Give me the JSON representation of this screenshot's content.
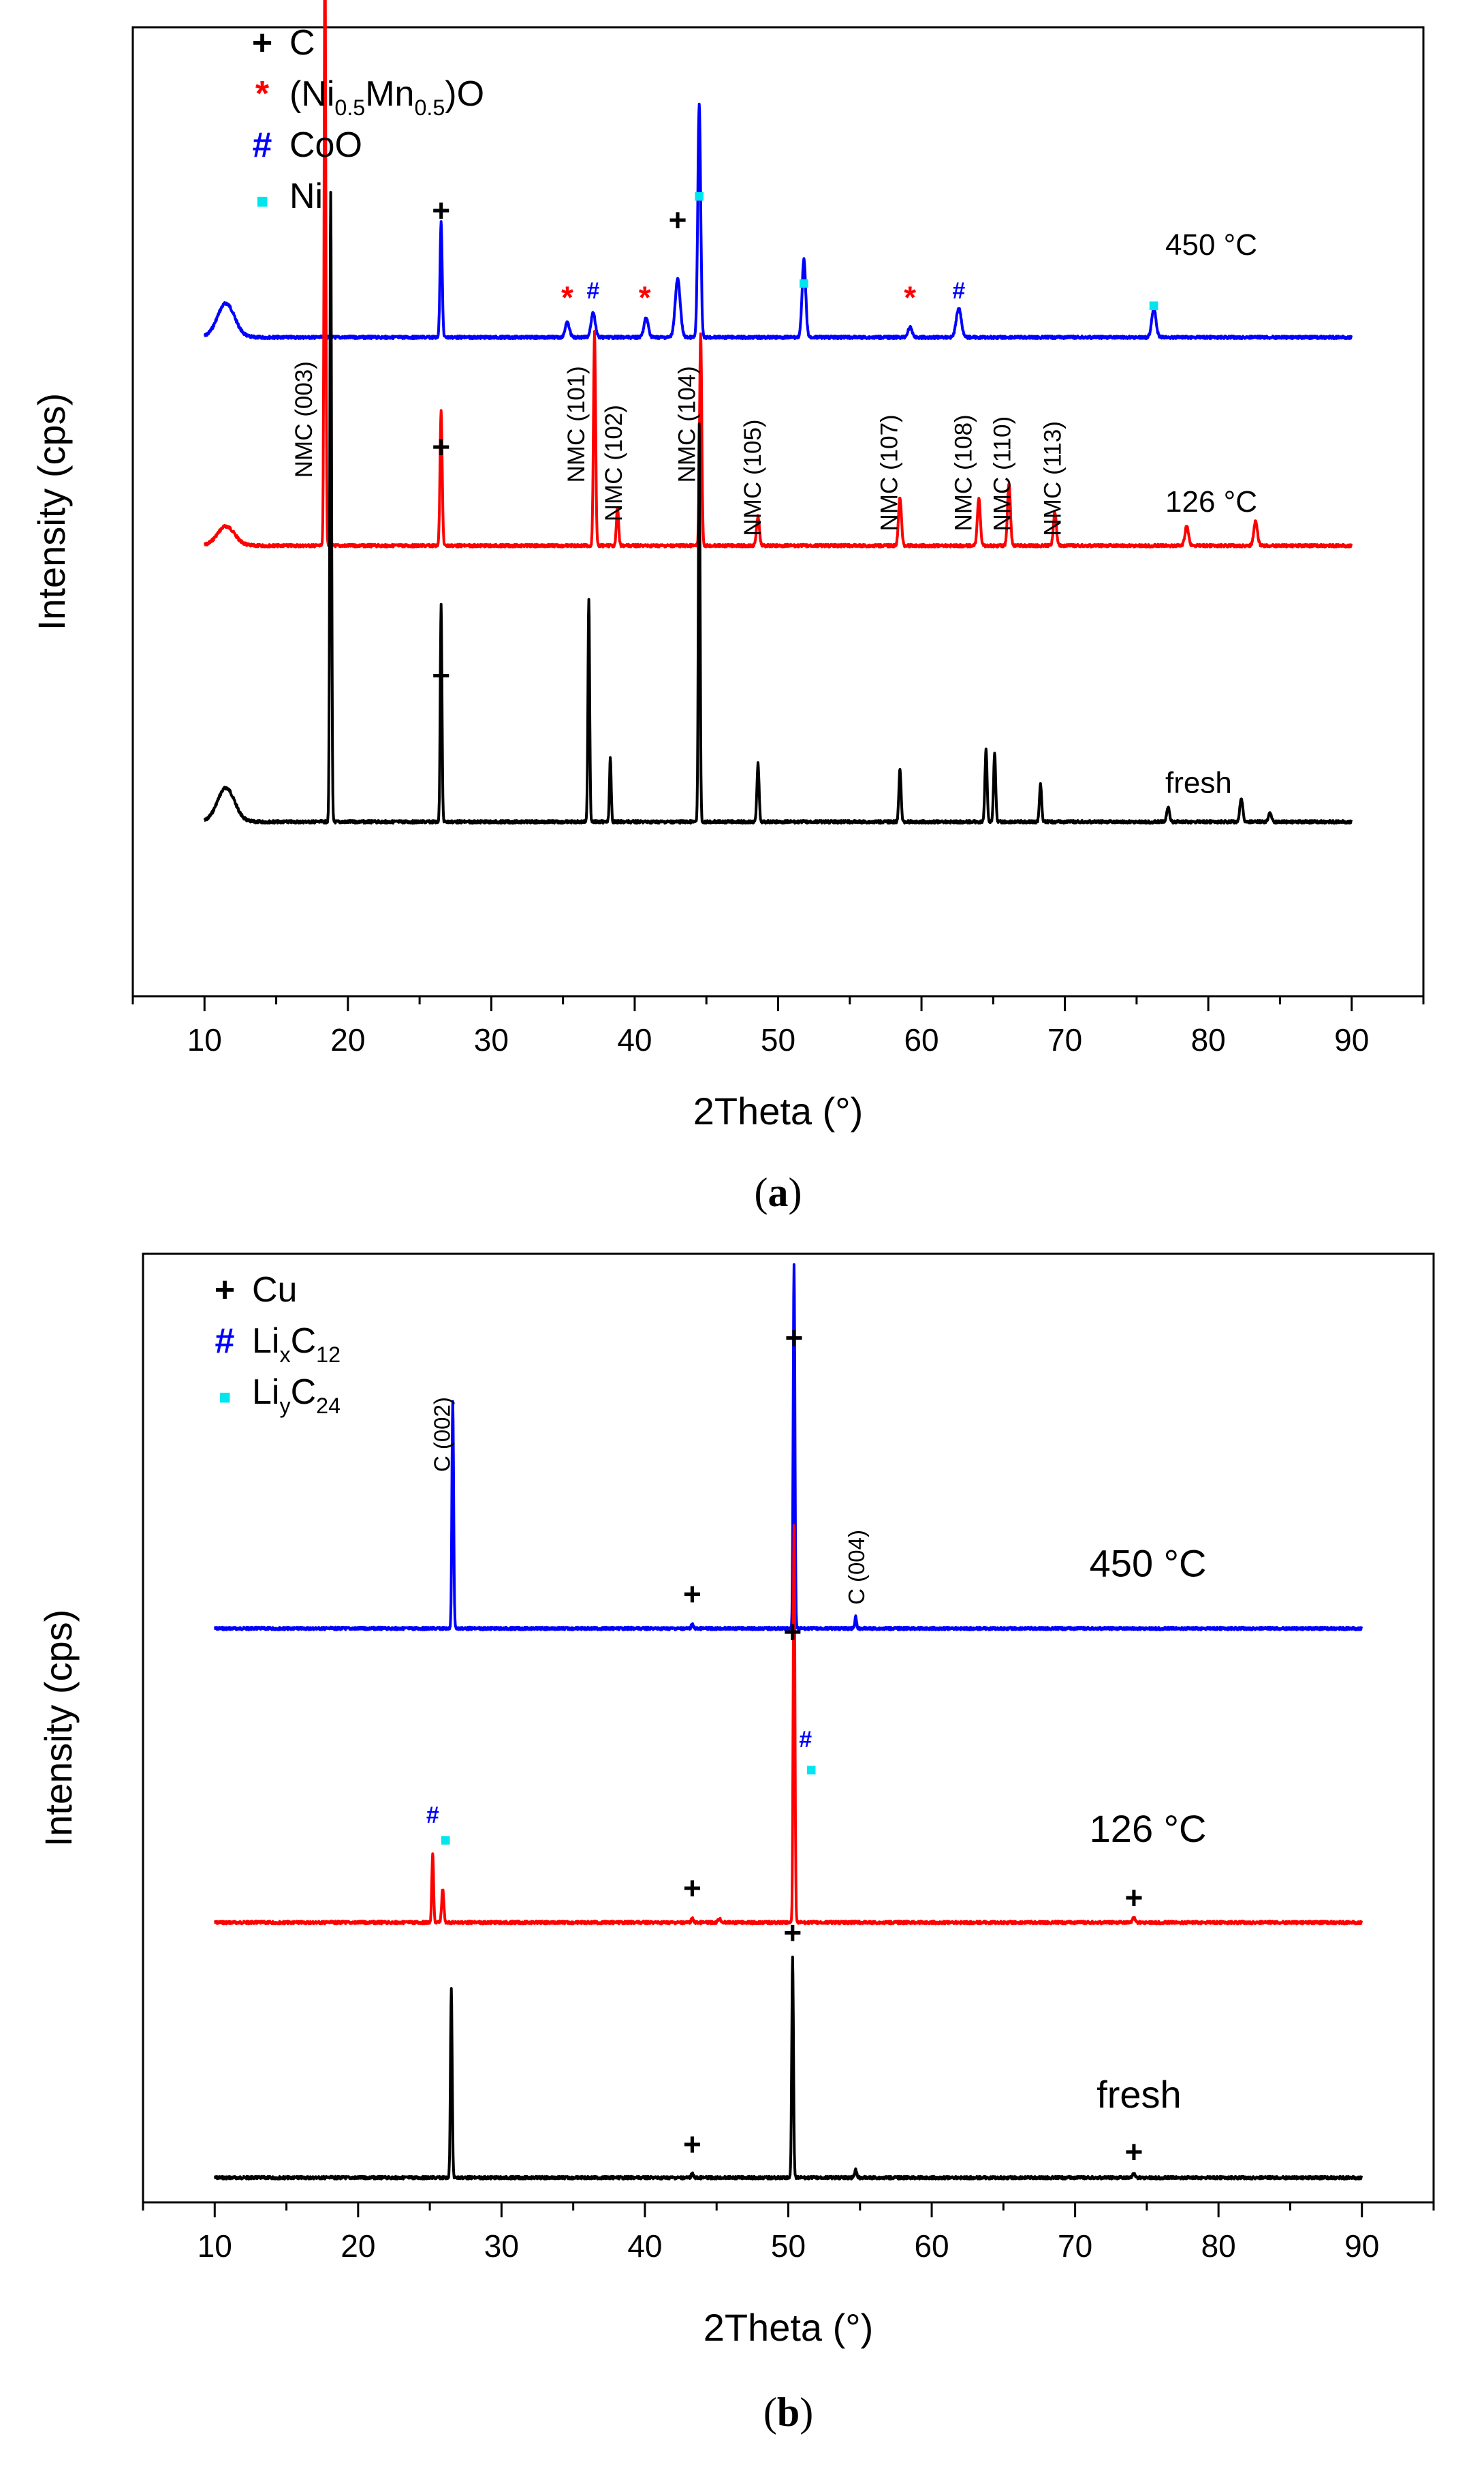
{
  "colors": {
    "black": "#000000",
    "red": "#ff0000",
    "blue": "#0000ff",
    "cyan": "#00e5ee"
  },
  "chart_data": [
    {
      "type": "line",
      "caption": {
        "open": "(",
        "letter": "a",
        "close": ")"
      },
      "xlabel": "2Theta (°)",
      "ylabel": "Intensity (cps)",
      "xlim": [
        5,
        95
      ],
      "x_ticks": [
        "10",
        "20",
        "30",
        "40",
        "50",
        "60",
        "70",
        "80",
        "90"
      ],
      "legend": [
        {
          "symbol": "+",
          "color": "#000000",
          "text": "C"
        },
        {
          "symbol": "*",
          "color": "#ff0000",
          "text": "(Ni0.5Mn0.5)O",
          "parts": {
            "pre": "(Ni",
            "sub1": "0.5",
            "mid": "Mn",
            "sub2": "0.5",
            "post": ")O"
          }
        },
        {
          "symbol": "#",
          "color": "#0000ff",
          "text": "CoO"
        },
        {
          "symbol": "■",
          "color": "#00e5ee",
          "text": "Ni"
        }
      ],
      "series": [
        {
          "name": "450 °C",
          "color": "#0000ff",
          "baseline_rel": 0.32,
          "peaks": [
            [
              11.5,
              0.035,
              1.2
            ],
            [
              26.5,
              0.12,
              0.15
            ],
            [
              35.3,
              0.015,
              0.3
            ],
            [
              37.1,
              0.025,
              0.3
            ],
            [
              40.8,
              0.02,
              0.3
            ],
            [
              43.0,
              0.06,
              0.35
            ],
            [
              44.5,
              0.24,
              0.2
            ],
            [
              51.8,
              0.08,
              0.25
            ],
            [
              59.2,
              0.01,
              0.3
            ],
            [
              62.6,
              0.03,
              0.35
            ],
            [
              76.2,
              0.03,
              0.3
            ]
          ]
        },
        {
          "name": "126 °C",
          "color": "#ff0000",
          "baseline_rel": 0.535,
          "peaks": [
            [
              11.5,
              0.02,
              1.2
            ],
            [
              18.4,
              0.625,
              0.12
            ],
            [
              26.5,
              0.14,
              0.15
            ],
            [
              37.2,
              0.22,
              0.15
            ],
            [
              38.8,
              0.04,
              0.15
            ],
            [
              44.6,
              0.22,
              0.15
            ],
            [
              48.6,
              0.03,
              0.2
            ],
            [
              58.5,
              0.05,
              0.2
            ],
            [
              64.0,
              0.05,
              0.2
            ],
            [
              66.1,
              0.065,
              0.2
            ],
            [
              69.3,
              0.035,
              0.2
            ],
            [
              78.5,
              0.02,
              0.25
            ],
            [
              83.3,
              0.025,
              0.25
            ]
          ]
        },
        {
          "name": "fresh",
          "color": "#000000",
          "baseline_rel": 0.82,
          "peaks": [
            [
              11.5,
              0.035,
              1.2
            ],
            [
              18.8,
              0.65,
              0.12
            ],
            [
              26.5,
              0.225,
              0.12
            ],
            [
              36.8,
              0.23,
              0.12
            ],
            [
              38.3,
              0.065,
              0.12
            ],
            [
              44.5,
              0.41,
              0.12
            ],
            [
              48.6,
              0.06,
              0.15
            ],
            [
              58.5,
              0.055,
              0.15
            ],
            [
              64.5,
              0.075,
              0.15
            ],
            [
              65.1,
              0.07,
              0.15
            ],
            [
              68.3,
              0.04,
              0.15
            ],
            [
              77.2,
              0.015,
              0.2
            ],
            [
              82.3,
              0.025,
              0.2
            ],
            [
              84.3,
              0.01,
              0.2
            ]
          ]
        }
      ],
      "annotations": [
        {
          "text": "450 °C",
          "x": 77.0,
          "y_rel": 0.235,
          "anchor": "start"
        },
        {
          "text": "126 °C",
          "x": 77.0,
          "y_rel": 0.5,
          "anchor": "start"
        },
        {
          "text": "fresh",
          "x": 77.0,
          "y_rel": 0.79,
          "anchor": "start"
        }
      ],
      "markers": [
        {
          "symbol": "+",
          "color": "#000000",
          "x": 26.5,
          "y_rel": 0.2
        },
        {
          "symbol": "+",
          "color": "#000000",
          "x": 43.0,
          "y_rel": 0.21
        },
        {
          "symbol": "+",
          "color": "#000000",
          "x": 26.5,
          "y_rel": 0.444
        },
        {
          "symbol": "+",
          "color": "#000000",
          "x": 26.5,
          "y_rel": 0.68
        },
        {
          "symbol": "*",
          "color": "#ff0000",
          "x": 35.3,
          "y_rel": 0.29
        },
        {
          "symbol": "*",
          "color": "#ff0000",
          "x": 40.7,
          "y_rel": 0.29
        },
        {
          "symbol": "*",
          "color": "#ff0000",
          "x": 59.2,
          "y_rel": 0.29
        },
        {
          "symbol": "#",
          "color": "#0000ff",
          "x": 37.1,
          "y_rel": 0.28
        },
        {
          "symbol": "#",
          "color": "#0000ff",
          "x": 62.6,
          "y_rel": 0.28
        },
        {
          "symbol": "■",
          "color": "#00e5ee",
          "x": 44.5,
          "y_rel": 0.18
        },
        {
          "symbol": "■",
          "color": "#00e5ee",
          "x": 51.8,
          "y_rel": 0.27
        },
        {
          "symbol": "■",
          "color": "#00e5ee",
          "x": 76.2,
          "y_rel": 0.293
        }
      ],
      "peak_labels": [
        {
          "text": "NMC (003)",
          "x": 17.5,
          "y_rel": 0.465
        },
        {
          "text": "NMC (101)",
          "x": 36.5,
          "y_rel": 0.47
        },
        {
          "text": "NMC (102)",
          "x": 39.1,
          "y_rel": 0.51
        },
        {
          "text": "NMC (104)",
          "x": 44.2,
          "y_rel": 0.47
        },
        {
          "text": "NMC (105)",
          "x": 48.8,
          "y_rel": 0.525
        },
        {
          "text": "NMC (107)",
          "x": 58.3,
          "y_rel": 0.52
        },
        {
          "text": "NMC (108)",
          "x": 63.5,
          "y_rel": 0.52
        },
        {
          "text": "NMC (110)",
          "x": 66.2,
          "y_rel": 0.52
        },
        {
          "text": "NMC (113)",
          "x": 69.7,
          "y_rel": 0.525
        }
      ]
    },
    {
      "type": "line",
      "caption": {
        "open": "(",
        "letter": "b",
        "close": ")"
      },
      "xlabel": "2Theta (°)",
      "ylabel": "Intensity (cps)",
      "xlim": [
        5,
        95
      ],
      "x_ticks": [
        "10",
        "20",
        "30",
        "40",
        "50",
        "60",
        "70",
        "80",
        "90"
      ],
      "legend": [
        {
          "symbol": "+",
          "color": "#000000",
          "text": "Cu"
        },
        {
          "symbol": "#",
          "color": "#0000ff",
          "text": "LixC12",
          "parts": {
            "pre": "Li",
            "sub1": "x",
            "mid": "C",
            "sub2": "12",
            "post": ""
          }
        },
        {
          "symbol": "■",
          "color": "#00e5ee",
          "text": "LiyC24",
          "parts": {
            "pre": "Li",
            "sub1": "y",
            "mid": "C",
            "sub2": "24",
            "post": ""
          }
        }
      ],
      "series": [
        {
          "name": "450 °C",
          "color": "#0000ff",
          "baseline_rel": 0.395,
          "peaks": [
            [
              26.6,
              0.238,
              0.12
            ],
            [
              43.3,
              0.004,
              0.15
            ],
            [
              50.4,
              0.385,
              0.12
            ],
            [
              54.7,
              0.012,
              0.12
            ]
          ]
        },
        {
          "name": "126 °C",
          "color": "#ff0000",
          "baseline_rel": 0.705,
          "peaks": [
            [
              25.2,
              0.073,
              0.12
            ],
            [
              25.9,
              0.035,
              0.15
            ],
            [
              43.3,
              0.004,
              0.15
            ],
            [
              45.2,
              0.004,
              0.2
            ],
            [
              50.4,
              0.42,
              0.12
            ],
            [
              74.1,
              0.005,
              0.2
            ]
          ]
        },
        {
          "name": "fresh",
          "color": "#000000",
          "baseline_rel": 0.974,
          "peaks": [
            [
              26.5,
              0.2,
              0.12
            ],
            [
              43.3,
              0.004,
              0.15
            ],
            [
              50.3,
              0.234,
              0.12
            ],
            [
              54.7,
              0.008,
              0.15
            ],
            [
              74.1,
              0.004,
              0.2
            ]
          ]
        }
      ],
      "annotations": [
        {
          "text": "450 °C",
          "x": 71.0,
          "y_rel": 0.34,
          "anchor": "start"
        },
        {
          "text": "126 °C",
          "x": 71.0,
          "y_rel": 0.62,
          "anchor": "start"
        },
        {
          "text": "fresh",
          "x": 71.5,
          "y_rel": 0.9,
          "anchor": "start"
        }
      ],
      "markers": [
        {
          "symbol": "+",
          "color": "#000000",
          "x": 50.4,
          "y_rel": 0.1
        },
        {
          "symbol": "+",
          "color": "#000000",
          "x": 43.3,
          "y_rel": 0.37
        },
        {
          "symbol": "+",
          "color": "#000000",
          "x": 50.3,
          "y_rel": 0.41
        },
        {
          "symbol": "+",
          "color": "#000000",
          "x": 43.3,
          "y_rel": 0.68
        },
        {
          "symbol": "+",
          "color": "#000000",
          "x": 74.1,
          "y_rel": 0.69
        },
        {
          "symbol": "+",
          "color": "#000000",
          "x": 50.3,
          "y_rel": 0.727
        },
        {
          "symbol": "+",
          "color": "#000000",
          "x": 43.3,
          "y_rel": 0.95
        },
        {
          "symbol": "+",
          "color": "#000000",
          "x": 74.1,
          "y_rel": 0.958
        },
        {
          "symbol": "#",
          "color": "#0000ff",
          "x": 51.2,
          "y_rel": 0.52
        },
        {
          "symbol": "#",
          "color": "#0000ff",
          "x": 25.2,
          "y_rel": 0.6
        },
        {
          "symbol": "■",
          "color": "#00e5ee",
          "x": 51.6,
          "y_rel": 0.55
        },
        {
          "symbol": "■",
          "color": "#00e5ee",
          "x": 26.1,
          "y_rel": 0.624
        }
      ],
      "peak_labels": [
        {
          "text": "C (002)",
          "x": 26.4,
          "y_rel": 0.23
        },
        {
          "text": "C (004)",
          "x": 55.3,
          "y_rel": 0.37
        }
      ]
    }
  ]
}
